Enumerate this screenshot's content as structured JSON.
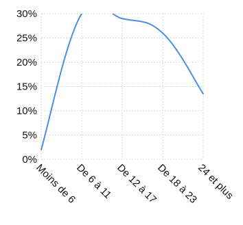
{
  "chart_data": {
    "type": "line",
    "title": "",
    "xlabel": "",
    "ylabel": "",
    "categories": [
      "Moins de 6",
      "De 6 à 11",
      "De 12 à 17",
      "De 18 à 23",
      "24 et plus"
    ],
    "series": [
      {
        "color": "#4a90e2",
        "values": [
          2,
          30,
          29,
          26,
          13.5
        ]
      }
    ],
    "ylim": [
      0,
      30
    ],
    "yticks": [
      "0%",
      "5%",
      "10%",
      "15%",
      "20%",
      "25%",
      "30%"
    ],
    "grid": true,
    "smooth": true,
    "legend": "none"
  }
}
